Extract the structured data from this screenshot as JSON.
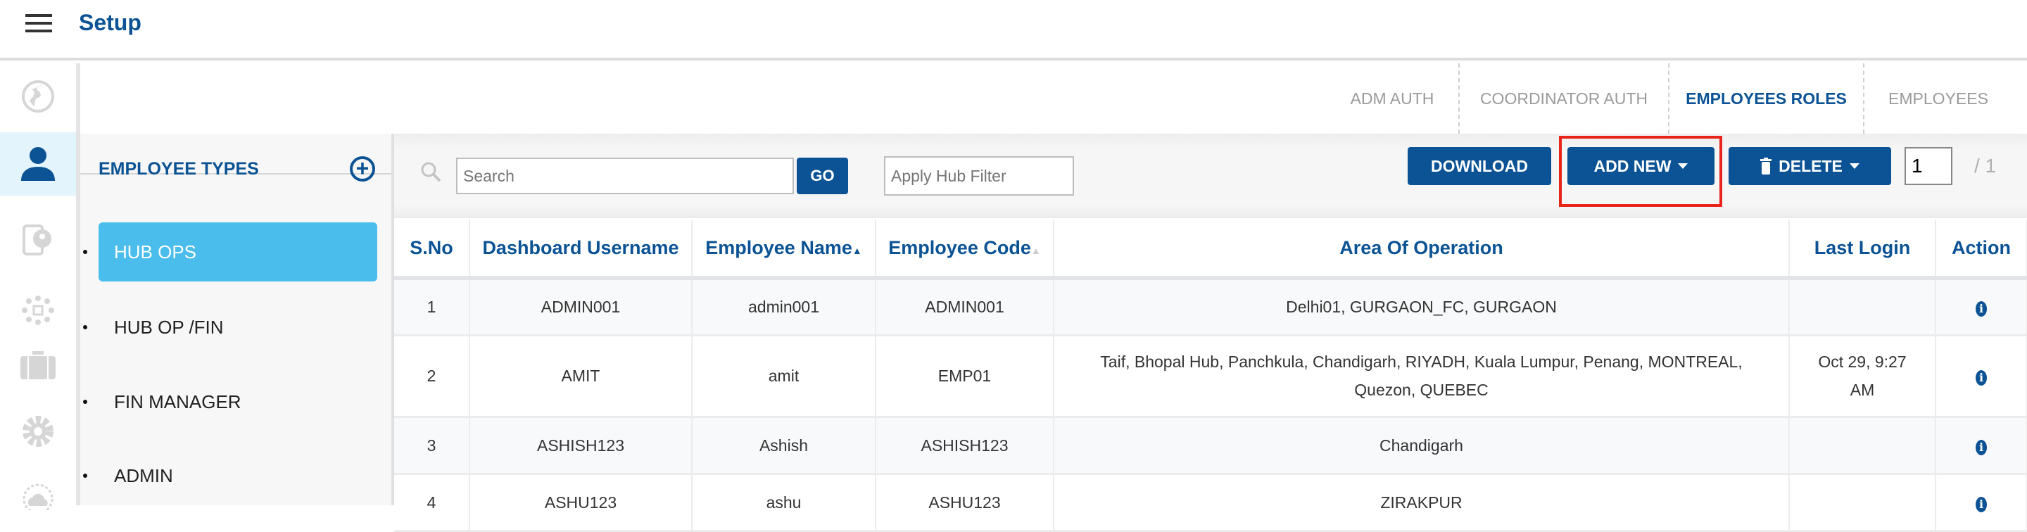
{
  "header": {
    "title": "Setup",
    "menu_icon": "hamburger-icon"
  },
  "rail": {
    "items": [
      {
        "icon": "globe-icon",
        "active": false
      },
      {
        "icon": "user-icon",
        "active": true
      },
      {
        "icon": "phone-user-icon",
        "active": false
      },
      {
        "icon": "network-icon",
        "active": false
      },
      {
        "icon": "briefcase-icon",
        "active": false
      },
      {
        "icon": "settings-gear-icon",
        "active": false
      },
      {
        "icon": "cloud-icon",
        "active": false
      }
    ]
  },
  "tabs": [
    {
      "label": "ADM AUTH",
      "active": false
    },
    {
      "label": "COORDINATOR AUTH",
      "active": false
    },
    {
      "label": "EMPLOYEES ROLES",
      "active": true
    },
    {
      "label": "EMPLOYEES",
      "active": false
    }
  ],
  "employee_types": {
    "title": "EMPLOYEE TYPES",
    "add_symbol": "+",
    "items": [
      {
        "label": "HUB OPS",
        "active": true
      },
      {
        "label": "HUB OP /FIN",
        "active": false
      },
      {
        "label": "FIN MANAGER",
        "active": false
      },
      {
        "label": "ADMIN",
        "active": false
      }
    ]
  },
  "toolbar": {
    "search_placeholder": "Search",
    "go_label": "GO",
    "hub_filter_placeholder": "Apply Hub Filter",
    "download_label": "DOWNLOAD",
    "add_new_label": "ADD NEW",
    "delete_label": "DELETE",
    "page_value": "1",
    "page_total": "/ 1"
  },
  "table": {
    "columns": [
      "S.No",
      "Dashboard Username",
      "Employee Name",
      "Employee Code",
      "Area Of Operation",
      "Last Login",
      "Action"
    ],
    "sort_indicators": {
      "employee_name": "▲",
      "employee_code": "▲"
    },
    "rows": [
      {
        "sno": "1",
        "username": "ADMIN001",
        "name": "admin001",
        "code": "ADMIN001",
        "area": "Delhi01, GURGAON_FC, GURGAON",
        "last_login": ""
      },
      {
        "sno": "2",
        "username": "AMIT",
        "name": "amit",
        "code": "EMP01",
        "area": "Taif, Bhopal Hub, Panchkula, Chandigarh, RIYADH, Kuala Lumpur, Penang, MONTREAL, Quezon, QUEBEC",
        "last_login": "Oct 29, 9:27 AM"
      },
      {
        "sno": "3",
        "username": "ASHISH123",
        "name": "Ashish",
        "code": "ASHISH123",
        "area": "Chandigarh",
        "last_login": ""
      },
      {
        "sno": "4",
        "username": "ASHU123",
        "name": "ashu",
        "code": "ASHU123",
        "area": "ZIRAKPUR",
        "last_login": ""
      }
    ],
    "action_icon": "info-icon"
  },
  "colors": {
    "brand": "#0b5394",
    "selected_item": "#4bbdec",
    "highlight_box": "#e8241b"
  }
}
